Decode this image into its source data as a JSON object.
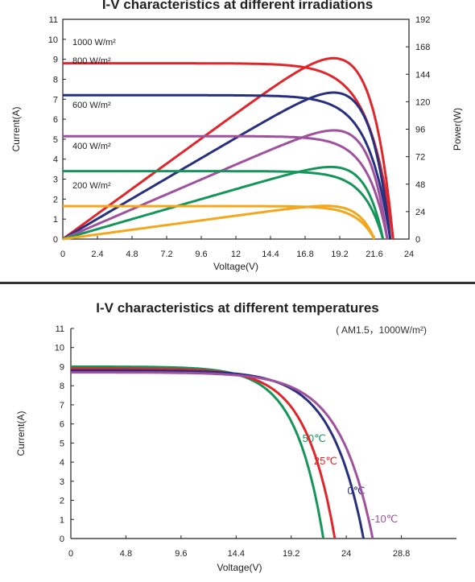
{
  "chart_data": [
    {
      "type": "line",
      "title": "I-V characteristics at different irradiations",
      "xlabel": "Voltage(V)",
      "ylabel": "Current(A)",
      "y2label": "Power(W)",
      "xlim": [
        0,
        24
      ],
      "ylim": [
        0,
        11
      ],
      "y2lim": [
        0,
        192
      ],
      "x_ticks": [
        "0",
        "2.4",
        "4.8",
        "7.2",
        "9.6",
        "12",
        "14.4",
        "16.8",
        "19.2",
        "21.6",
        "24"
      ],
      "y_ticks": [
        "0",
        "1",
        "2",
        "3",
        "4",
        "5",
        "6",
        "7",
        "8",
        "9",
        "10",
        "11"
      ],
      "y2_ticks": [
        "0",
        "24",
        "48",
        "72",
        "96",
        "120",
        "144",
        "168",
        "192"
      ],
      "series": [
        {
          "name": "1000 W/m²",
          "color": "#e0262b",
          "isc": 8.8,
          "voc": 22.9,
          "vmp": 18.8,
          "imp": 8.3,
          "pmax": 158
        },
        {
          "name": "800 W/m²",
          "color": "#27307f",
          "isc": 7.2,
          "voc": 22.7,
          "vmp": 18.8,
          "imp": 6.8,
          "pmax": 128
        },
        {
          "name": "600 W/m²",
          "color": "#a0519e",
          "isc": 5.15,
          "voc": 22.5,
          "vmp": 18.8,
          "imp": 5.0,
          "pmax": 95
        },
        {
          "name": "400 W/m²",
          "color": "#16955b",
          "isc": 3.4,
          "voc": 22.2,
          "vmp": 18.6,
          "imp": 3.4,
          "pmax": 63
        },
        {
          "name": "200 W/m²",
          "color": "#f3a71d",
          "isc": 1.65,
          "voc": 21.6,
          "vmp": 18.2,
          "imp": 1.6,
          "pmax": 29
        }
      ]
    },
    {
      "type": "line",
      "title": "I-V characteristics at different temperatures",
      "subtitle": "( AM1.5，1000W/m²)",
      "xlabel": "Voltage(V)",
      "ylabel": "Current(A)",
      "xlim": [
        0,
        33.6
      ],
      "ylim": [
        0,
        11
      ],
      "x_ticks": [
        "0",
        "4.8",
        "9.6",
        "14.4",
        "19.2",
        "24",
        "28.8"
      ],
      "y_ticks": [
        "0",
        "1",
        "2",
        "3",
        "4",
        "5",
        "6",
        "7",
        "8",
        "9",
        "10",
        "11"
      ],
      "series": [
        {
          "name": "50℃",
          "color": "#16955b",
          "isc": 9.0,
          "voc": 22.0
        },
        {
          "name": "25℃",
          "color": "#e0262b",
          "isc": 8.9,
          "voc": 23.0
        },
        {
          "name": "0℃",
          "color": "#27307f",
          "isc": 8.8,
          "voc": 25.5
        },
        {
          "name": "-10℃",
          "color": "#a0519e",
          "isc": 8.7,
          "voc": 26.3
        }
      ]
    }
  ]
}
